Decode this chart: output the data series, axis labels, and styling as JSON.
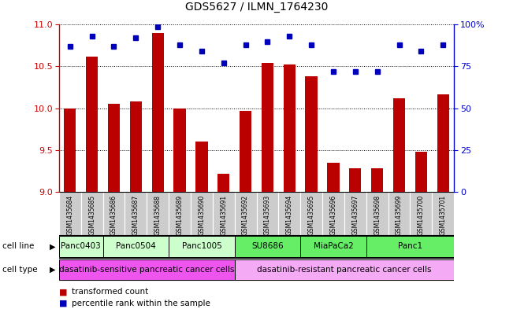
{
  "title": "GDS5627 / ILMN_1764230",
  "samples": [
    "GSM1435684",
    "GSM1435685",
    "GSM1435686",
    "GSM1435687",
    "GSM1435688",
    "GSM1435689",
    "GSM1435690",
    "GSM1435691",
    "GSM1435692",
    "GSM1435693",
    "GSM1435694",
    "GSM1435695",
    "GSM1435696",
    "GSM1435697",
    "GSM1435698",
    "GSM1435699",
    "GSM1435700",
    "GSM1435701"
  ],
  "transformed_count": [
    10.0,
    10.62,
    10.05,
    10.08,
    10.9,
    10.0,
    9.6,
    9.21,
    9.97,
    10.54,
    10.52,
    10.38,
    9.35,
    9.28,
    9.28,
    10.12,
    9.48,
    10.17
  ],
  "percentile": [
    87,
    93,
    87,
    92,
    99,
    88,
    84,
    77,
    88,
    90,
    93,
    88,
    72,
    72,
    72,
    88,
    84,
    88
  ],
  "ylim_left": [
    9.0,
    11.0
  ],
  "ylim_right": [
    0,
    100
  ],
  "yticks_left": [
    9.0,
    9.5,
    10.0,
    10.5,
    11.0
  ],
  "yticks_right": [
    0,
    25,
    50,
    75,
    100
  ],
  "cell_lines": [
    {
      "label": "Panc0403",
      "start": 0,
      "end": 1,
      "color": "#ccffcc"
    },
    {
      "label": "Panc0504",
      "start": 2,
      "end": 4,
      "color": "#ccffcc"
    },
    {
      "label": "Panc1005",
      "start": 5,
      "end": 7,
      "color": "#ccffcc"
    },
    {
      "label": "SU8686",
      "start": 8,
      "end": 10,
      "color": "#66ee66"
    },
    {
      "label": "MiaPaCa2",
      "start": 11,
      "end": 13,
      "color": "#66ee66"
    },
    {
      "label": "Panc1",
      "start": 14,
      "end": 17,
      "color": "#66ee66"
    }
  ],
  "cell_types": [
    {
      "label": "dasatinib-sensitive pancreatic cancer cells",
      "start": 0,
      "end": 8,
      "color": "#ee55ee"
    },
    {
      "label": "dasatinib-resistant pancreatic cancer cells",
      "start": 8,
      "end": 18,
      "color": "#f5aaf5"
    }
  ],
  "bar_color": "#bb0000",
  "dot_color": "#0000bb",
  "bar_bottom": 9.0,
  "left_axis_color": "#cc0000",
  "right_axis_color": "#0000cc",
  "sample_bg_color": "#cccccc",
  "n_samples": 18
}
